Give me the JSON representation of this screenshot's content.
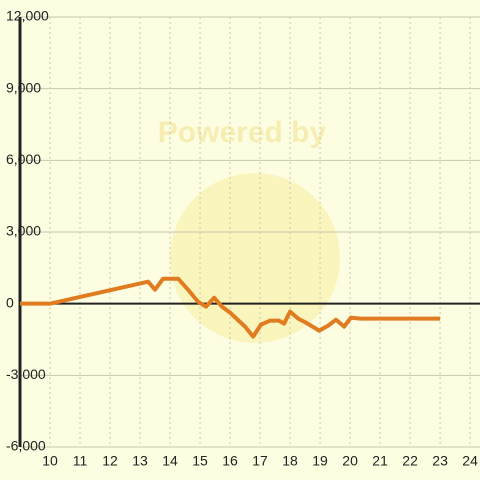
{
  "chart_data": {
    "type": "line",
    "watermark": "Powered by",
    "x": [
      9,
      10,
      13.27,
      13.5,
      13.77,
      14.27,
      14.6,
      14.93,
      15.2,
      15.47,
      15.73,
      16,
      16.5,
      16.77,
      17.03,
      17.33,
      17.63,
      17.8,
      18,
      18.27,
      18.53,
      18.97,
      19.27,
      19.53,
      19.8,
      20.03,
      20.33,
      23
    ],
    "series": [
      {
        "color": "#e07b20",
        "values": [
          0,
          0,
          920,
          585,
          1045,
          1045,
          585,
          84,
          -125,
          250,
          -125,
          -376,
          -962,
          -1380,
          -878,
          -711,
          -711,
          -836,
          -334,
          -627,
          -794,
          -1129,
          -920,
          -669,
          -962,
          -585,
          -627,
          -627
        ]
      }
    ],
    "xlim": [
      9,
      24.33
    ],
    "ylim": [
      -6000,
      12000
    ],
    "xticks": [
      10,
      11,
      12,
      13,
      14,
      15,
      16,
      17,
      18,
      19,
      20,
      21,
      22,
      23,
      24
    ],
    "yticks": [
      {
        "value": -6000,
        "label": "-6,000"
      },
      {
        "value": -3000,
        "label": "-3,000"
      },
      0,
      {
        "value": 3000,
        "label": "3,000"
      },
      {
        "value": 6000,
        "label": "6,000"
      },
      {
        "value": 9000,
        "label": "9,000"
      },
      {
        "value": 12000,
        "label": "12,000"
      }
    ],
    "grid": true
  }
}
